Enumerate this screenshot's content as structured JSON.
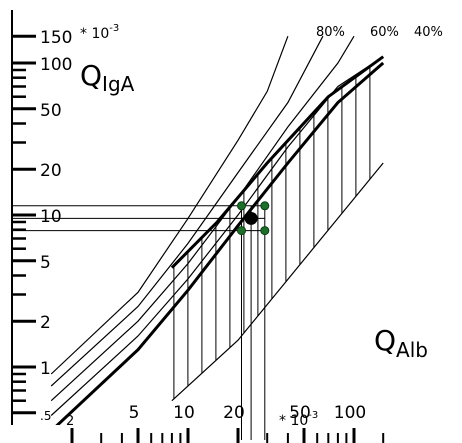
{
  "chart_data": {
    "type": "line",
    "y_scale": "log",
    "x_scale": "log",
    "y_axis": {
      "name": "Q",
      "name_sub": "IgA",
      "exponent_label": "* 10",
      "exponent_sup": "-3",
      "tick_labels": [
        {
          "text": "150",
          "value": 150
        },
        {
          "text": "100",
          "value": 100
        },
        {
          "text": "50",
          "value": 50
        },
        {
          "text": "20",
          "value": 20
        },
        {
          "text": "10",
          "value": 10
        },
        {
          "text": "5",
          "value": 5
        },
        {
          "text": "2",
          "value": 2
        },
        {
          "text": "1",
          "value": 1
        },
        {
          "text": ".5",
          "value": 0.5
        }
      ]
    },
    "x_axis": {
      "name": "Q",
      "name_sub": "Alb",
      "exponent_label": "* 10",
      "exponent_sup": "-3",
      "tick_labels": [
        {
          "text": "2",
          "value": 2
        },
        {
          "text": "5",
          "value": 5
        },
        {
          "text": "10",
          "value": 10
        },
        {
          "text": "20",
          "value": 20
        },
        {
          "text": "50",
          "value": 50
        },
        {
          "text": "100",
          "value": 100
        }
      ]
    },
    "series": [
      {
        "name": "80%",
        "points": [
          [
            1.5,
            0.9
          ],
          [
            5,
            3.1
          ],
          [
            10,
            9.5
          ],
          [
            20,
            31
          ],
          [
            30,
            65
          ],
          [
            40,
            150
          ]
        ]
      },
      {
        "name": "60%",
        "points": [
          [
            1.5,
            0.75
          ],
          [
            5,
            2.5
          ],
          [
            10,
            6.5
          ],
          [
            20,
            19
          ],
          [
            40,
            55
          ],
          [
            65,
            150
          ]
        ]
      },
      {
        "name": "40%",
        "points": [
          [
            1.5,
            0.6
          ],
          [
            5,
            2.0
          ],
          [
            10,
            4.8
          ],
          [
            20,
            13
          ],
          [
            40,
            38
          ],
          [
            80,
            100
          ],
          [
            100,
            150
          ]
        ]
      },
      {
        "name": "",
        "points": [
          [
            1.5,
            0.48
          ],
          [
            5,
            1.6
          ],
          [
            10,
            3.8
          ],
          [
            20,
            10
          ],
          [
            40,
            28
          ],
          [
            80,
            70
          ],
          [
            150,
            110
          ]
        ]
      },
      {
        "name": "",
        "points": [
          [
            1.5,
            0.38
          ],
          [
            5,
            1.3
          ],
          [
            10,
            3.2
          ],
          [
            20,
            8.5
          ],
          [
            40,
            22
          ],
          [
            80,
            55
          ],
          [
            150,
            100
          ]
        ]
      }
    ],
    "reference_band": {
      "upper_line": [
        [
          8,
          4.5
        ],
        [
          15,
          9
        ],
        [
          30,
          22
        ],
        [
          70,
          60
        ],
        [
          150,
          110
        ]
      ],
      "lower_line": [
        [
          8,
          0.6
        ],
        [
          20,
          1.5
        ],
        [
          150,
          22
        ]
      ]
    },
    "sample_point": {
      "x": 24,
      "y": 9.5
    },
    "error_points": [
      {
        "x": 21,
        "y": 11.5
      },
      {
        "x": 29,
        "y": 11.5
      },
      {
        "x": 21,
        "y": 7.9
      },
      {
        "x": 29,
        "y": 7.9
      }
    ]
  }
}
